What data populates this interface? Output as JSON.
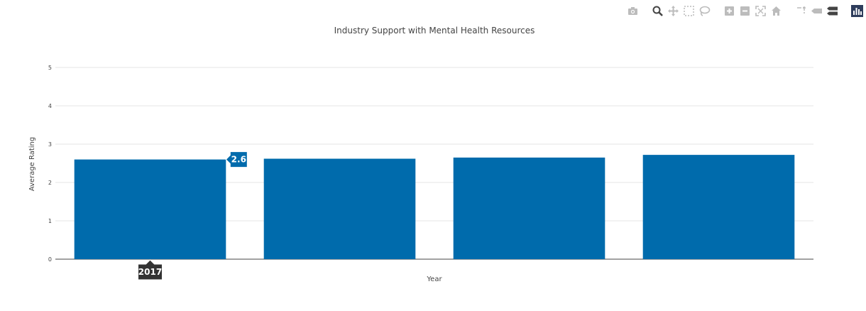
{
  "colors": {
    "bar": "#006bac",
    "grid": "#e6e6e6",
    "axis": "#444444",
    "hover_x_bg": "#333333",
    "icon": "#bcbcbc",
    "icon_active": "#444444",
    "brand": "#2e3d5c"
  },
  "toolbar": {
    "buttons": [
      {
        "name": "camera-icon",
        "title": "Download plot as a png"
      },
      {
        "gap": true
      },
      {
        "name": "zoom-icon",
        "title": "Zoom",
        "active": true
      },
      {
        "name": "pan-icon",
        "title": "Pan"
      },
      {
        "name": "box-select-icon",
        "title": "Box Select"
      },
      {
        "name": "lasso-select-icon",
        "title": "Lasso Select"
      },
      {
        "gap": true
      },
      {
        "name": "zoom-in-icon",
        "title": "Zoom in"
      },
      {
        "name": "zoom-out-icon",
        "title": "Zoom out"
      },
      {
        "name": "autoscale-icon",
        "title": "Autoscale"
      },
      {
        "name": "home-icon",
        "title": "Reset axes"
      },
      {
        "gap": true
      },
      {
        "name": "spikelines-icon",
        "title": "Toggle Spike Lines"
      },
      {
        "name": "hover-closest-icon",
        "title": "Show closest data on hover"
      },
      {
        "name": "hover-compare-icon",
        "title": "Compare data on hover",
        "active": true
      },
      {
        "gap": true
      },
      {
        "name": "plotly-logo-icon",
        "title": "Produced with Plotly"
      }
    ]
  },
  "chart_data": {
    "type": "bar",
    "title": "Industry Support with Mental Health Resources",
    "xlabel": "Year",
    "ylabel": "Average Rating",
    "categories": [
      "2017",
      "",
      "",
      ""
    ],
    "values": [
      2.6,
      2.62,
      2.65,
      2.72
    ],
    "ylim": [
      0,
      5
    ],
    "yticks": [
      "0",
      "1",
      "2",
      "3",
      "4",
      "5"
    ],
    "grid": true,
    "hover": {
      "x_label": "2017",
      "y_label": "2.6",
      "index": 0
    }
  }
}
